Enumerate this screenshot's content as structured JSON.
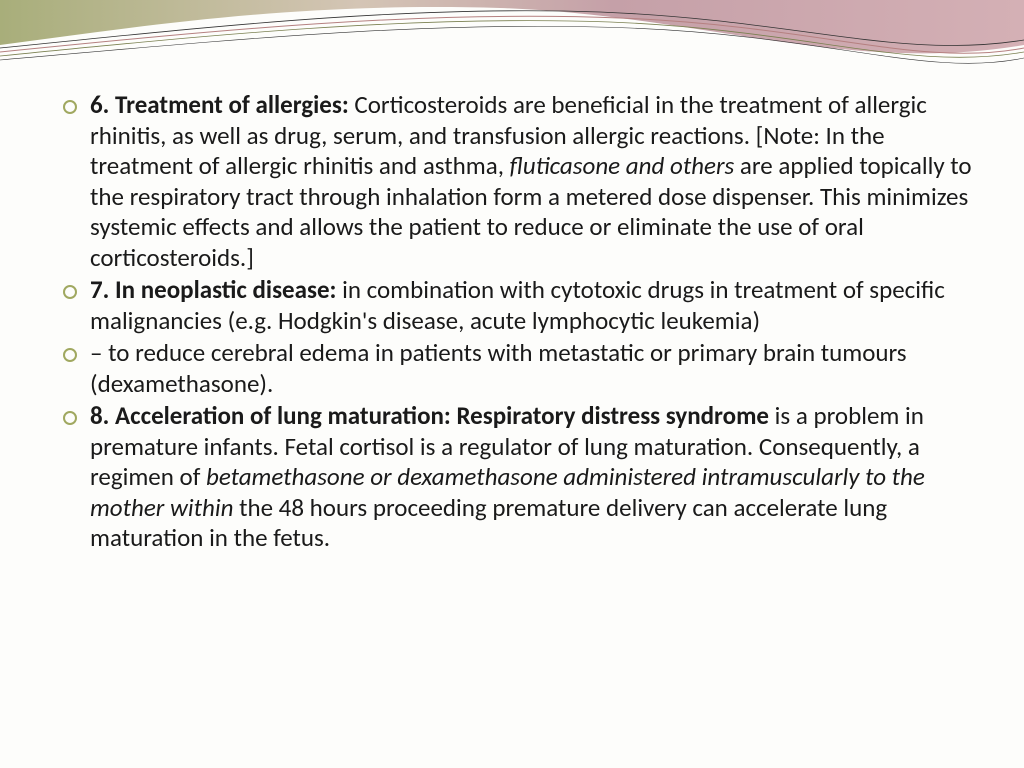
{
  "decoration": {
    "colors": {
      "olive": "#a8ae7a",
      "mauve": "#c5a0a8",
      "rose": "#d4b0b5",
      "line1": "#333333",
      "line2": "#b58080",
      "line3": "#7a8050"
    }
  },
  "bullets": [
    {
      "parts": [
        {
          "text": "6. Treatment of allergies: ",
          "bold": true
        },
        {
          "text": "Corticosteroids are beneficial in the treatment of allergic rhinitis, as well as drug, serum, and transfusion allergic reactions. [Note: In the treatment of allergic rhinitis and asthma, "
        },
        {
          "text": "fluticasone and others",
          "italic": true
        },
        {
          "text": " are applied topically to the respiratory tract through inhalation form a metered dose dispenser. This minimizes systemic effects and allows the patient to reduce or eliminate the use of oral corticosteroids.]"
        }
      ]
    },
    {
      "parts": [
        {
          "text": "7. In neoplastic disease: ",
          "bold": true
        },
        {
          "text": "in combination with cytotoxic drugs in treatment of specific malignancies (e.g. Hodgkin's disease, acute lymphocytic leukemia)"
        }
      ]
    },
    {
      "parts": [
        {
          "text": " –  to reduce cerebral edema in patients with metastatic or primary brain tumours (dexamethasone)."
        }
      ]
    },
    {
      "parts": [
        {
          "text": "8. Acceleration of lung maturation: Respiratory distress syndrome ",
          "bold": true
        },
        {
          "text": "is a problem in premature infants. Fetal cortisol is a regulator of lung maturation. Consequently, a regimen of "
        },
        {
          "text": "betamethasone or dexamethasone administered intramuscularly to the mother within",
          "italic": true
        },
        {
          "text": " the 48 hours proceeding premature delivery can accelerate lung maturation in the fetus."
        }
      ]
    }
  ]
}
